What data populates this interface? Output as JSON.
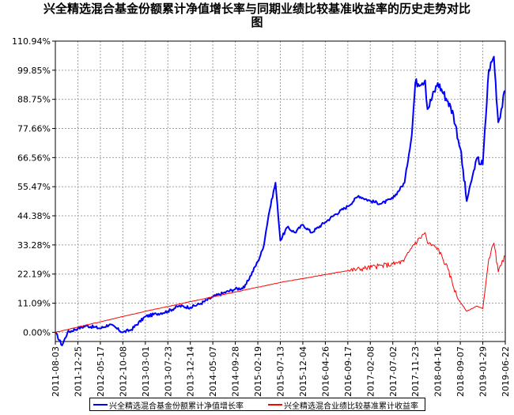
{
  "title_line1": "兴全精选混合基金份额累计净值增长率与同期业绩比较基准收益率的历史走势对比",
  "title_line2": "图",
  "chart_data": {
    "type": "line",
    "title": "兴全精选混合基金份额累计净值增长率与同期业绩比较基准收益率的历史走势对比图",
    "y_ticks": [
      "110.94%",
      "99.85%",
      "88.75%",
      "77.66%",
      "66.56%",
      "55.47%",
      "44.38%",
      "33.28%",
      "22.19%",
      "11.09%",
      "0.00%"
    ],
    "ylim": [
      -3.5,
      110.94
    ],
    "x_ticks": [
      "2011-08-03",
      "2011-12-25",
      "2012-05-17",
      "2012-10-08",
      "2013-03-01",
      "2013-07-23",
      "2013-12-14",
      "2014-05-07",
      "2014-09-28",
      "2015-02-19",
      "2015-07-13",
      "2015-12-04",
      "2016-04-26",
      "2016-09-17",
      "2017-02-08",
      "2017-07-02",
      "2017-11-23",
      "2018-04-16",
      "2018-09-07",
      "2019-01-29",
      "2019-06-22"
    ],
    "grid": true,
    "legend_position": "bottom",
    "series": [
      {
        "name": "兴全精选混合基金份额累计净值增长率",
        "color": "#0000ff",
        "x": [
          "2011-08-03",
          "2011-09-15",
          "2011-10-20",
          "2011-12-25",
          "2012-02-20",
          "2012-05-17",
          "2012-07-15",
          "2012-10-08",
          "2012-12-01",
          "2013-03-01",
          "2013-05-10",
          "2013-07-23",
          "2013-10-01",
          "2013-12-14",
          "2014-02-20",
          "2014-05-07",
          "2014-07-15",
          "2014-09-28",
          "2014-11-25",
          "2015-02-19",
          "2015-03-25",
          "2015-04-30",
          "2015-06-12",
          "2015-07-13",
          "2015-08-26",
          "2015-10-15",
          "2015-12-04",
          "2016-01-28",
          "2016-04-26",
          "2016-06-30",
          "2016-09-17",
          "2016-11-25",
          "2017-02-08",
          "2017-04-20",
          "2017-07-02",
          "2017-09-15",
          "2017-10-31",
          "2017-11-23",
          "2018-01-25",
          "2018-02-09",
          "2018-04-16",
          "2018-06-20",
          "2018-07-25",
          "2018-09-07",
          "2018-10-18",
          "2018-12-20",
          "2019-01-29",
          "2019-03-08",
          "2019-04-10",
          "2019-05-08",
          "2019-06-22"
        ],
        "values": [
          0.0,
          -5.0,
          0.0,
          1.5,
          2.5,
          1.5,
          3.0,
          0.0,
          1.0,
          6.0,
          7.0,
          8.0,
          10.0,
          9.5,
          11.0,
          13.5,
          15.0,
          16.5,
          17.0,
          27.0,
          32.0,
          45.0,
          57.0,
          35.0,
          40.0,
          38.0,
          41.0,
          38.0,
          42.0,
          45.0,
          48.0,
          52.0,
          50.0,
          49.0,
          51.0,
          57.0,
          75.0,
          95.0,
          96.0,
          85.0,
          95.0,
          88.0,
          83.0,
          70.0,
          50.0,
          66.0,
          64.0,
          100.0,
          105.0,
          80.0,
          92.0
        ]
      },
      {
        "name": "兴全精选混合业绩比较基准累计收益率",
        "color": "#ff0000",
        "x": [
          "2011-08-03",
          "2013-03-01",
          "2014-05-07",
          "2015-07-13",
          "2016-09-17",
          "2017-07-02",
          "2017-09-10",
          "2017-11-05",
          "2018-01-25",
          "2018-02-09",
          "2018-04-16",
          "2018-06-20",
          "2018-08-20",
          "2018-10-18",
          "2018-12-20",
          "2019-01-29",
          "2019-03-08",
          "2019-04-10",
          "2019-05-08",
          "2019-06-22"
        ],
        "values": [
          0.0,
          8.0,
          13.5,
          19.0,
          23.5,
          26.0,
          27.0,
          33.0,
          38.0,
          34.0,
          32.0,
          24.0,
          13.0,
          8.0,
          10.0,
          9.0,
          28.0,
          34.0,
          23.0,
          29.0
        ]
      }
    ]
  }
}
